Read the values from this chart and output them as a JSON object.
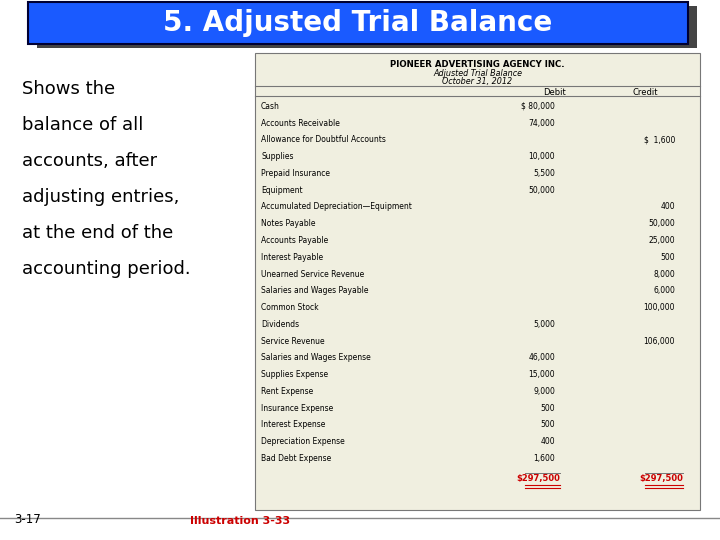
{
  "title": "5. Adjusted Trial Balance",
  "title_bg": "#1a5aff",
  "title_fg": "#ffffff",
  "left_text_lines": [
    "Shows the",
    "balance of all",
    "accounts, after",
    "adjusting entries,",
    "at the end of the",
    "accounting period."
  ],
  "table_header_company": "PIONEER ADVERTISING AGENCY INC.",
  "table_header_title": "Adjusted Trial Balance",
  "table_header_date": "October 31, 2012",
  "rows": [
    [
      "Cash",
      "$ 80,000",
      ""
    ],
    [
      "Accounts Receivable",
      "74,000",
      ""
    ],
    [
      "Allowance for Doubtful Accounts",
      "",
      "$  1,600"
    ],
    [
      "Supplies",
      "10,000",
      ""
    ],
    [
      "Prepaid Insurance",
      "5,500",
      ""
    ],
    [
      "Equipment",
      "50,000",
      ""
    ],
    [
      "Accumulated Depreciation—Equipment",
      "",
      "400"
    ],
    [
      "Notes Payable",
      "",
      "50,000"
    ],
    [
      "Accounts Payable",
      "",
      "25,000"
    ],
    [
      "Interest Payable",
      "",
      "500"
    ],
    [
      "Unearned Service Revenue",
      "",
      "8,000"
    ],
    [
      "Salaries and Wages Payable",
      "",
      "6,000"
    ],
    [
      "Common Stock",
      "",
      "100,000"
    ],
    [
      "Dividends",
      "5,000",
      ""
    ],
    [
      "Service Revenue",
      "",
      "106,000"
    ],
    [
      "Salaries and Wages Expense",
      "46,000",
      ""
    ],
    [
      "Supplies Expense",
      "15,000",
      ""
    ],
    [
      "Rent Expense",
      "9,000",
      ""
    ],
    [
      "Insurance Expense",
      "500",
      ""
    ],
    [
      "Interest Expense",
      "500",
      ""
    ],
    [
      "Depreciation Expense",
      "400",
      ""
    ],
    [
      "Bad Debt Expense",
      "1,600",
      ""
    ]
  ],
  "total_debit": "$297,500",
  "total_credit": "$297,500",
  "illustration": "Illustration 3-33",
  "slide_number": "3-17",
  "bg_color": "#ffffff",
  "table_bg": "#f0efe0",
  "total_color": "#cc0000",
  "illustration_color": "#cc0000",
  "shadow_color": "#444444"
}
